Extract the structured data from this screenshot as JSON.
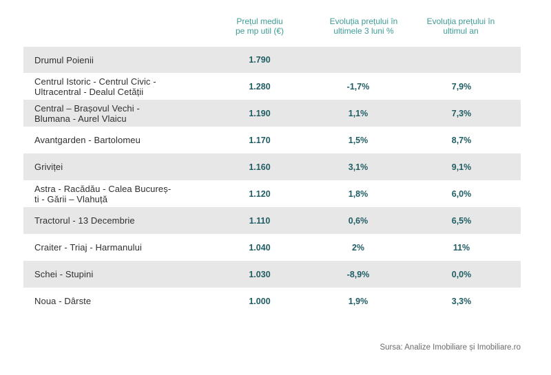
{
  "header": {
    "price_line1": "Prețul mediu",
    "price_line2": "pe mp util (€)",
    "three_months_line1": "Evoluția prețului în",
    "three_months_line2": "ultimele 3 luni %",
    "year_line1": "Evoluția prețului în",
    "year_line2": "ultimul an"
  },
  "rows": [
    {
      "name_line1": "Drumul Poienii",
      "name_line2": "",
      "price": "1.790",
      "three_months": "",
      "year": ""
    },
    {
      "name_line1": "Centrul Istoric - Centrul Civic -",
      "name_line2": "Ultracentral - Dealul Cetății",
      "price": "1.280",
      "three_months": "-1,7%",
      "year": "7,9%"
    },
    {
      "name_line1": "Central – Brașovul Vechi -",
      "name_line2": "Blumana - Aurel Vlaicu",
      "price": "1.190",
      "three_months": "1,1%",
      "year": "7,3%"
    },
    {
      "name_line1": "Avantgarden - Bartolomeu",
      "name_line2": "",
      "price": "1.170",
      "three_months": "1,5%",
      "year": "8,7%"
    },
    {
      "name_line1": "Griviței",
      "name_line2": "",
      "price": "1.160",
      "three_months": "3,1%",
      "year": "9,1%"
    },
    {
      "name_line1": "Astra - Racădău - Calea Bucureș-",
      "name_line2": "ti - Gării – Vlahuță",
      "price": "1.120",
      "three_months": "1,8%",
      "year": "6,0%"
    },
    {
      "name_line1": "Tractorul - 13 Decembrie",
      "name_line2": "",
      "price": "1.110",
      "three_months": "0,6%",
      "year": "6,5%"
    },
    {
      "name_line1": "Craiter - Triaj - Harmanului",
      "name_line2": "",
      "price": "1.040",
      "three_months": "2%",
      "year": "11%"
    },
    {
      "name_line1": "Schei - Stupini",
      "name_line2": "",
      "price": "1.030",
      "three_months": "-8,9%",
      "year": "0,0%"
    },
    {
      "name_line1": "Noua - Dârste",
      "name_line2": "",
      "price": "1.000",
      "three_months": "1,9%",
      "year": "3,3%"
    }
  ],
  "source": "Sursa: Analize Imobiliare și Imobiliare.ro"
}
